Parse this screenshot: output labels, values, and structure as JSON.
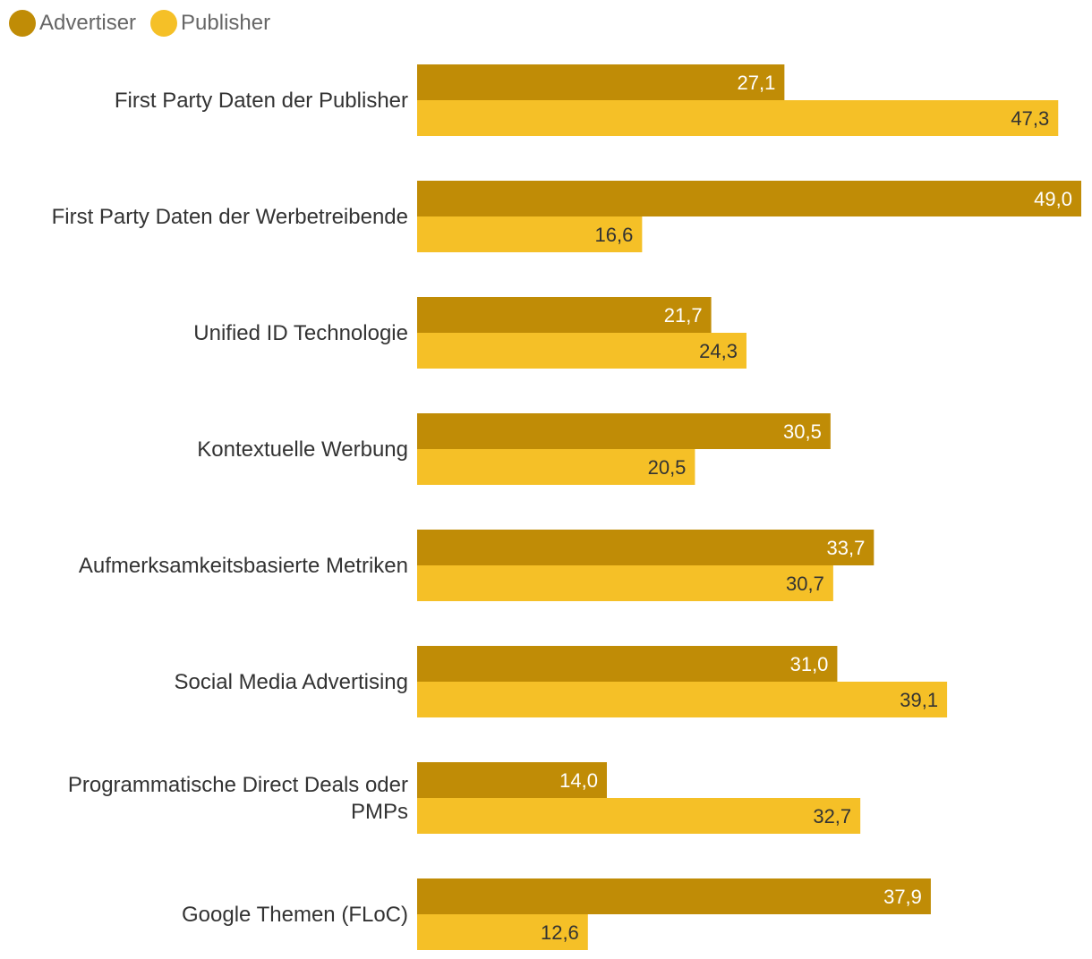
{
  "chart_data": {
    "type": "bar",
    "orientation": "horizontal",
    "title": "",
    "xlabel": "",
    "ylabel": "",
    "xlim": [
      0,
      49
    ],
    "grid": false,
    "legend_position": "top-left",
    "categories": [
      [
        "First Party Daten der Publisher"
      ],
      [
        "First Party Daten der Werbetreibende"
      ],
      [
        "Unified ID Technologie"
      ],
      [
        "Kontextuelle Werbung"
      ],
      [
        "Aufmerksamkeitsbasierte Metriken"
      ],
      [
        "Social Media Advertising"
      ],
      [
        "Programmatische Direct Deals oder",
        "PMPs"
      ],
      [
        "Google Themen (FLoC)"
      ]
    ],
    "series": [
      {
        "name": "Advertiser",
        "color": "#c08c06",
        "label_color": "#ffffff",
        "values": [
          27.1,
          49.0,
          21.7,
          30.5,
          33.7,
          31.0,
          14.0,
          37.9
        ],
        "labels": [
          "27,1",
          "49,0",
          "21,7",
          "30,5",
          "33,7",
          "31,0",
          "14,0",
          "37,9"
        ]
      },
      {
        "name": "Publisher",
        "color": "#f5c027",
        "label_color": "#333333",
        "values": [
          47.3,
          16.6,
          24.3,
          20.5,
          30.7,
          39.1,
          32.7,
          12.6
        ],
        "labels": [
          "47,3",
          "16,6",
          "24,3",
          "20,5",
          "30,7",
          "39,1",
          "32,7",
          "12,6"
        ]
      }
    ]
  }
}
